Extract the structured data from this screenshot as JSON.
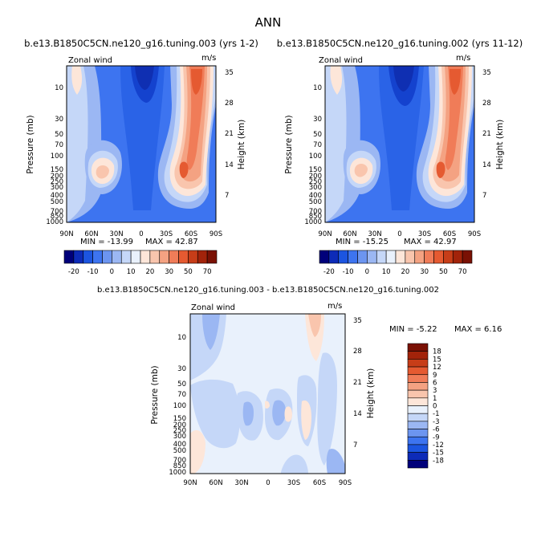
{
  "figure_title": "ANN",
  "chart_data": [
    {
      "type": "heatmap",
      "title": "b.e13.B1850C5CN.ne120_g16.tuning.003 (yrs 1-2)",
      "variable": "Zonal wind",
      "units": "m/s",
      "ylabel": "Pressure (mb)",
      "y2label": "Height (km)",
      "x_ticks": [
        "90N",
        "60N",
        "30N",
        "0",
        "30S",
        "60S",
        "90S"
      ],
      "y_ticks": [
        "10",
        "30",
        "50",
        "70",
        "100",
        "150",
        "200",
        "250",
        "300",
        "400",
        "500",
        "700",
        "850",
        "1000"
      ],
      "y2_ticks": [
        "35",
        "28",
        "21",
        "14",
        "7"
      ],
      "min_label": "MIN = -13.99",
      "max_label": "MAX = 42.87",
      "colorbar_ticks": [
        "-20",
        "-10",
        "0",
        "10",
        "20",
        "30",
        "50",
        "70"
      ],
      "colorbar_colors": [
        "#00007a",
        "#0d2bb8",
        "#1c55e0",
        "#3d74f0",
        "#6c95f0",
        "#9bb7f3",
        "#c5d7f8",
        "#e9f1fc",
        "#fde6d9",
        "#f9c5ad",
        "#f4a282",
        "#f07c58",
        "#e55a31",
        "#c73d18",
        "#a2230a",
        "#7a1104"
      ]
    },
    {
      "type": "heatmap",
      "title": "b.e13.B1850C5CN.ne120_g16.tuning.002 (yrs 11-12)",
      "variable": "Zonal wind",
      "units": "m/s",
      "ylabel": "Pressure (mb)",
      "y2label": "Height (km)",
      "x_ticks": [
        "90N",
        "60N",
        "30N",
        "0",
        "30S",
        "60S",
        "90S"
      ],
      "y_ticks": [
        "10",
        "30",
        "50",
        "70",
        "100",
        "150",
        "200",
        "250",
        "300",
        "400",
        "500",
        "700",
        "850",
        "1000"
      ],
      "y2_ticks": [
        "35",
        "28",
        "21",
        "14",
        "7"
      ],
      "min_label": "MIN = -15.25",
      "max_label": "MAX = 42.97",
      "colorbar_ticks": [
        "-20",
        "-10",
        "0",
        "10",
        "20",
        "30",
        "50",
        "70"
      ],
      "colorbar_colors": [
        "#00007a",
        "#0d2bb8",
        "#1c55e0",
        "#3d74f0",
        "#6c95f0",
        "#9bb7f3",
        "#c5d7f8",
        "#e9f1fc",
        "#fde6d9",
        "#f9c5ad",
        "#f4a282",
        "#f07c58",
        "#e55a31",
        "#c73d18",
        "#a2230a",
        "#7a1104"
      ]
    },
    {
      "type": "heatmap",
      "title": "b.e13.B1850C5CN.ne120_g16.tuning.003 - b.e13.B1850C5CN.ne120_g16.tuning.002",
      "variable": "Zonal wind",
      "units": "m/s",
      "ylabel": "Pressure (mb)",
      "y2label": "Height (km)",
      "x_ticks": [
        "90N",
        "60N",
        "30N",
        "0",
        "30S",
        "60S",
        "90S"
      ],
      "y_ticks": [
        "10",
        "30",
        "50",
        "70",
        "100",
        "150",
        "200",
        "250",
        "300",
        "400",
        "500",
        "700",
        "850",
        "1000"
      ],
      "y2_ticks": [
        "35",
        "28",
        "21",
        "14",
        "7"
      ],
      "min_label": "MIN =   -5.22",
      "max_label": "MAX =    6.16",
      "colorbar_ticks": [
        "18",
        "15",
        "12",
        "9",
        "6",
        "3",
        "1",
        "0",
        "-1",
        "-3",
        "-6",
        "-9",
        "-12",
        "-15",
        "-18"
      ],
      "colorbar_colors": [
        "#7a1104",
        "#a2230a",
        "#c73d18",
        "#e55a31",
        "#f07c58",
        "#f4a282",
        "#f9c5ad",
        "#fde6d9",
        "#e9f1fc",
        "#c5d7f8",
        "#9bb7f3",
        "#6c95f0",
        "#3d74f0",
        "#1c55e0",
        "#0d2bb8",
        "#00007a"
      ]
    }
  ]
}
